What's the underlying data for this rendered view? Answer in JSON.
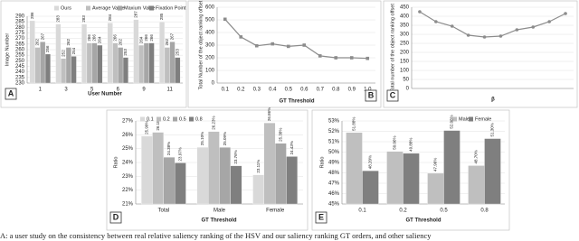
{
  "chart_data": [
    {
      "type": "bar",
      "panel": "A",
      "x_label": "User Number",
      "y_label": "Image Number",
      "categories": [
        "1",
        "3",
        "5",
        "6",
        "9",
        "11"
      ],
      "series": [
        {
          "name": "Ours",
          "color": "#d9d9d9",
          "values": [
            286,
            283,
            283,
            284,
            287,
            285
          ]
        },
        {
          "name": "Average Value",
          "color": "#bfbfbf",
          "values": [
            262,
            252,
            266,
            266,
            264,
            262
          ]
        },
        {
          "name": "Maxium Value",
          "color": "#a6a6a6",
          "values": [
            267,
            262,
            266,
            262,
            266,
            267
          ]
        },
        {
          "name": "Fixation Point",
          "color": "#7f7f7f",
          "values": [
            256,
            254,
            264,
            253,
            266,
            253
          ]
        }
      ],
      "ylim": [
        230,
        290
      ],
      "yticks": [
        230,
        235,
        240,
        245,
        250,
        255,
        260,
        265,
        270,
        275,
        280,
        285,
        290
      ],
      "grid": true,
      "legend": "top",
      "data_labels": true
    },
    {
      "type": "line",
      "panel": "B",
      "x_label": "GT Threshold",
      "y_label": "Total Number of the object ranking offset",
      "categories": [
        "0.1",
        "0.2",
        "0.3",
        "0.4",
        "0.5",
        "0.6",
        "0.7",
        "0.8",
        "0.9",
        "1.0"
      ],
      "values": [
        505,
        365,
        295,
        310,
        290,
        300,
        215,
        200,
        200,
        195
      ],
      "color": "#8c8c8c",
      "ylim": [
        0,
        600
      ],
      "yticks": [
        0,
        100,
        200,
        300,
        400,
        500,
        600
      ],
      "grid": true,
      "marker": "square"
    },
    {
      "type": "line",
      "panel": "C",
      "x_label": "β",
      "y_label": "Total number of the object ranking offset",
      "categories": [
        null,
        null,
        null,
        null,
        null,
        null,
        null,
        null,
        null,
        null
      ],
      "values": [
        425,
        370,
        345,
        295,
        285,
        290,
        325,
        340,
        370,
        415
      ],
      "color": "#8c8c8c",
      "ylim": [
        0,
        450
      ],
      "yticks": [
        0,
        50,
        100,
        150,
        200,
        250,
        300,
        350,
        400,
        450
      ],
      "grid": true,
      "marker": "circle"
    },
    {
      "type": "bar",
      "panel": "D",
      "x_label": "GT Threshold",
      "y_label": "Ratio",
      "categories": [
        "Total",
        "Male",
        "Female"
      ],
      "series": [
        {
          "name": "0.1",
          "color": "#d9d9d9",
          "values": [
            25.9,
            25.1,
            23.11
          ],
          "value_labels": [
            "25.90%",
            "25.10%",
            "23.11%"
          ]
        },
        {
          "name": "0.2",
          "color": "#bfbfbf",
          "values": [
            26.18,
            26.23,
            26.86
          ],
          "value_labels": [
            "26.18%",
            "26.23%",
            "26.86%"
          ]
        },
        {
          "name": "0.5",
          "color": "#a6a6a6",
          "values": [
            24.38,
            25.09,
            25.38
          ],
          "value_labels": [
            "24.38%",
            "25.09%",
            "25.38%"
          ]
        },
        {
          "name": "0.8",
          "color": "#7f7f7f",
          "values": [
            23.97,
            23.76,
            24.43
          ],
          "value_labels": [
            "23.97%",
            "23.76%",
            "24.43%"
          ]
        }
      ],
      "ylim": [
        21,
        27
      ],
      "yticks": [
        {
          "value": 21,
          "label": "21%"
        },
        {
          "value": 22,
          "label": "22%"
        },
        {
          "value": 23,
          "label": "23%"
        },
        {
          "value": 24,
          "label": "24%"
        },
        {
          "value": 25,
          "label": "25%"
        },
        {
          "value": 26,
          "label": "26%"
        },
        {
          "value": 27,
          "label": "27%"
        }
      ],
      "grid": true,
      "legend": "top-left",
      "data_labels": true
    },
    {
      "type": "bar",
      "panel": "E",
      "x_label": "GT Threshold",
      "y_label": "Ratio",
      "categories": [
        "0.1",
        "0.2",
        "0.5",
        "0.8"
      ],
      "series": [
        {
          "name": "Male",
          "color": "#bfbfbf",
          "values": [
            51.88,
            50.06,
            47.96,
            48.7
          ],
          "value_labels": [
            "51.88%",
            "50.06%",
            "47.96%",
            "48.70%"
          ]
        },
        {
          "name": "Female",
          "color": "#7f7f7f",
          "values": [
            48.2,
            49.88,
            52.08,
            51.3
          ],
          "value_labels": [
            "48.20%",
            "49.88%",
            "52.08%",
            "51.30%"
          ]
        }
      ],
      "ylim": [
        45,
        53
      ],
      "yticks": [
        {
          "value": 45,
          "label": "45%"
        },
        {
          "value": 46,
          "label": "46%"
        },
        {
          "value": 47,
          "label": "47%"
        },
        {
          "value": 48,
          "label": "48%"
        },
        {
          "value": 49,
          "label": "49%"
        },
        {
          "value": 50,
          "label": "50%"
        },
        {
          "value": 51,
          "label": "51%"
        },
        {
          "value": 52,
          "label": "52%"
        },
        {
          "value": 53,
          "label": "53%"
        }
      ],
      "grid": true,
      "legend": "top-right",
      "data_labels": true
    }
  ],
  "caption": "A: a user study on the consistency between real relative saliency ranking of the HSV and our saliency ranking GT orders, and other saliency"
}
